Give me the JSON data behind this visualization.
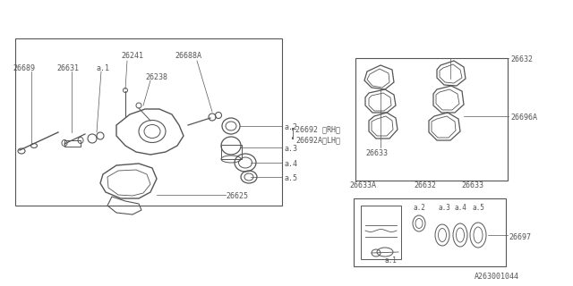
{
  "bg_color": "#ffffff",
  "line_color": "#555555",
  "text_color": "#555555",
  "footer": "A263001044",
  "figsize": [
    6.4,
    3.2
  ],
  "dpi": 100,
  "xlim": [
    0,
    640
  ],
  "ylim": [
    320,
    0
  ]
}
